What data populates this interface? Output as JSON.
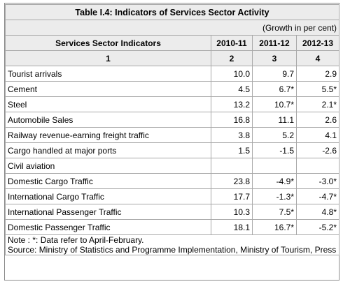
{
  "table": {
    "title": "Table I.4: Indicators of Services Sector Activity",
    "unit_note": "(Growth in per cent)",
    "header": {
      "indicator": "Services Sector Indicators",
      "years": [
        "2010-11",
        "2011-12",
        "2012-13"
      ]
    },
    "col_numbers": [
      "1",
      "2",
      "3",
      "4"
    ],
    "rows": [
      {
        "label": "Tourist arrivals",
        "values": [
          "10.0",
          "9.7",
          "2.9"
        ]
      },
      {
        "label": "Cement",
        "values": [
          "4.5",
          "6.7*",
          "5.5*"
        ]
      },
      {
        "label": "Steel",
        "values": [
          "13.2",
          "10.7*",
          "2.1*"
        ]
      },
      {
        "label": "Automobile Sales",
        "values": [
          "16.8",
          "11.1",
          "2.6"
        ]
      },
      {
        "label": "Railway revenue-earning freight traffic",
        "values": [
          "3.8",
          "5.2",
          "4.1"
        ]
      },
      {
        "label": "Cargo handled at major ports",
        "values": [
          "1.5",
          "-1.5",
          "-2.6"
        ]
      },
      {
        "label": "Civil aviation",
        "values": [
          "",
          "",
          ""
        ]
      },
      {
        "label": "Domestic Cargo Traffic",
        "values": [
          "23.8",
          "-4.9*",
          "-3.0*"
        ]
      },
      {
        "label": "International Cargo Traffic",
        "values": [
          "17.7",
          "-1.3*",
          "-4.7*"
        ]
      },
      {
        "label": "International Passenger Traffic",
        "values": [
          "10.3",
          "7.5*",
          "4.8*"
        ]
      },
      {
        "label": "Domestic Passenger Traffic",
        "values": [
          "18.1",
          "16.7*",
          "-5.2*"
        ]
      }
    ],
    "note": "Note : *: Data refer to April-February.",
    "source": "Source: Ministry of Statistics and Programme Implementation, Ministry of Tourism, Press Information Bureau, Indian Ports Association, SIAM and CMIE."
  }
}
